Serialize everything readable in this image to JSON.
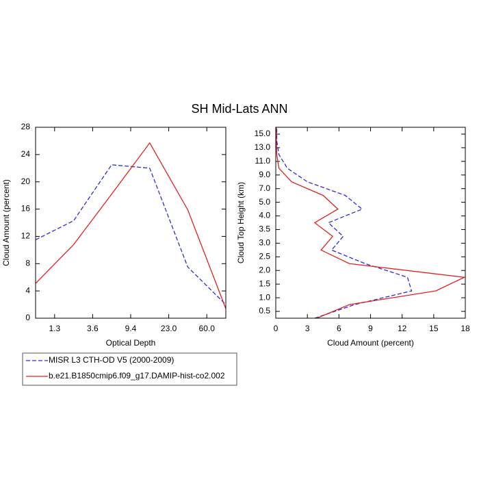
{
  "title": "SH Mid-Lats ANN",
  "chart_data": [
    {
      "type": "line",
      "xlabel": "Optical Depth",
      "ylabel": "Cloud Amount (percent)",
      "xlim": [
        0,
        5
      ],
      "ylim": [
        0,
        28
      ],
      "xticks": [
        {
          "value": 0.5,
          "label": "1.3"
        },
        {
          "value": 1.5,
          "label": "3.6"
        },
        {
          "value": 2.5,
          "label": "9.4"
        },
        {
          "value": 3.5,
          "label": "23.0"
        },
        {
          "value": 4.5,
          "label": "60.0"
        }
      ],
      "yticks": [
        0,
        4,
        8,
        12,
        16,
        20,
        24,
        28
      ],
      "series": [
        {
          "name": "MISR L3 CTH-OD V5 (2000-2009)",
          "color": "#2b2bd9",
          "dash": true,
          "values": [
            11.5,
            14.3,
            22.5,
            22.0,
            7.5,
            2.0
          ]
        },
        {
          "name": "b.e21.B1850cmip6.f09_g17.DAMIP-hist-co2.002",
          "color": "#e02020",
          "dash": false,
          "values": [
            5.1,
            10.8,
            18.2,
            25.7,
            15.9,
            1.4
          ]
        }
      ]
    },
    {
      "type": "profile",
      "xlabel": "Cloud Amount (percent)",
      "ylabel": "Cloud Top Height (km)",
      "xlim": [
        0,
        18
      ],
      "ylim": [
        0,
        14
      ],
      "xticks": [
        0,
        3,
        6,
        9,
        12,
        15,
        18
      ],
      "yticks": [
        {
          "value": 0.5,
          "label": "0.5"
        },
        {
          "value": 1.5,
          "label": "1.0"
        },
        {
          "value": 2.5,
          "label": "1.5"
        },
        {
          "value": 3.5,
          "label": "2.0"
        },
        {
          "value": 4.5,
          "label": "2.5"
        },
        {
          "value": 5.5,
          "label": "3.0"
        },
        {
          "value": 6.5,
          "label": "3.5"
        },
        {
          "value": 7.5,
          "label": "4.0"
        },
        {
          "value": 8.5,
          "label": "5.0"
        },
        {
          "value": 9.5,
          "label": "7.0"
        },
        {
          "value": 10.5,
          "label": "9.0"
        },
        {
          "value": 11.5,
          "label": "11.0"
        },
        {
          "value": 12.5,
          "label": "13.0"
        },
        {
          "value": 13.5,
          "label": "15.0"
        }
      ],
      "series": [
        {
          "color": "#2b2bd9",
          "dash": true,
          "values": [
            3.7,
            7.5,
            12.9,
            12.5,
            8.5,
            5.3,
            6.4,
            5.0,
            8.2,
            6.6,
            3.0,
            1.1,
            0.3,
            0.1,
            0.1
          ]
        },
        {
          "color": "#e02020",
          "dash": false,
          "values": [
            3.9,
            7.0,
            15.2,
            17.9,
            7.0,
            4.3,
            5.4,
            3.7,
            5.9,
            4.5,
            1.5,
            0.3,
            0.1,
            0.05,
            0.05
          ]
        }
      ]
    }
  ]
}
